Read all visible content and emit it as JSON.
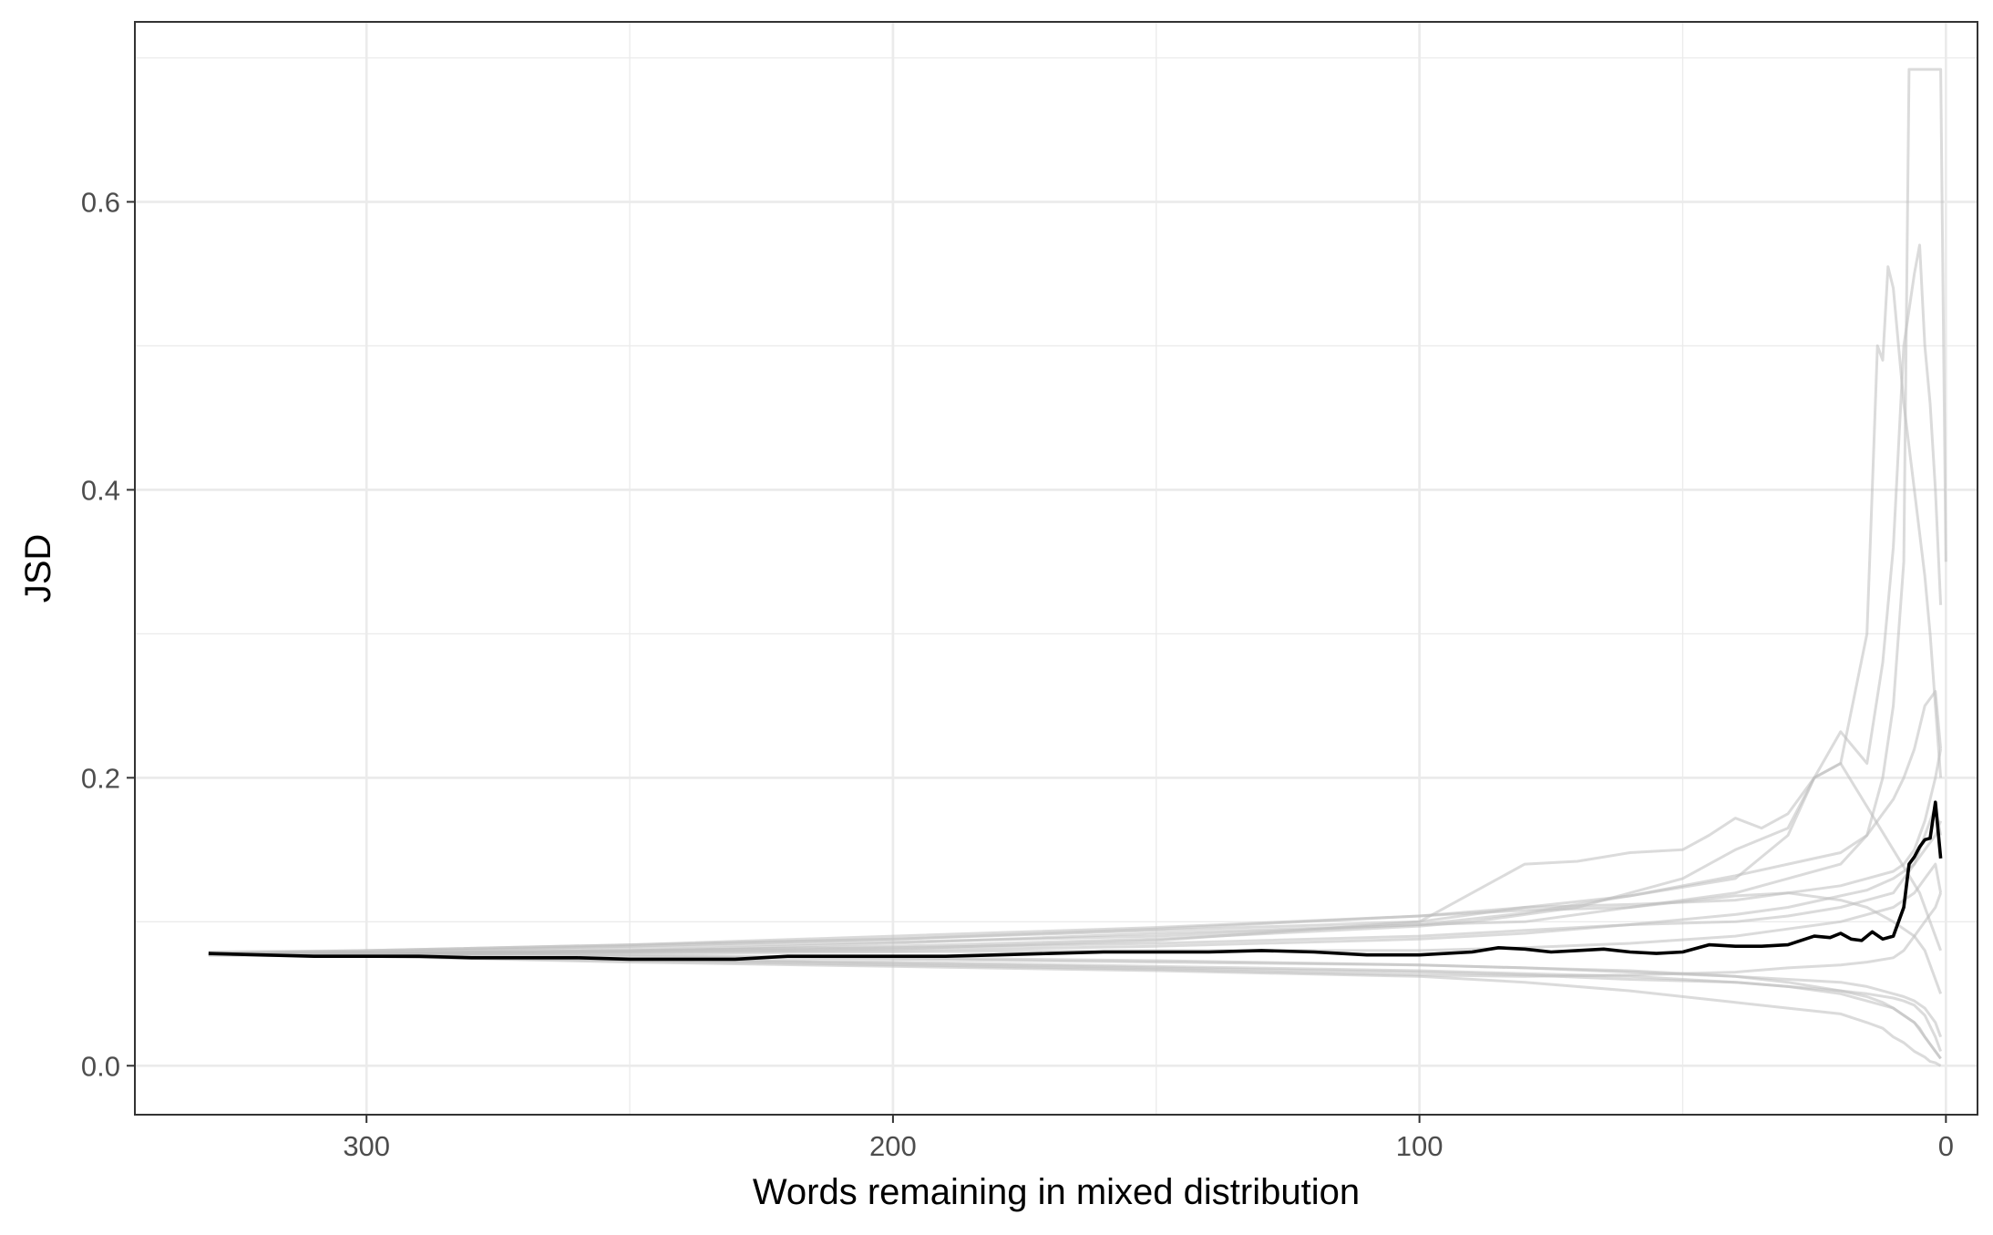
{
  "chart_data": {
    "type": "line",
    "title": "",
    "xlabel": "Words remaining in mixed distribution",
    "ylabel": "JSD",
    "x_reversed": true,
    "xlim": [
      344,
      -6
    ],
    "ylim": [
      -0.034,
      0.725
    ],
    "x_major_ticks": [
      300,
      200,
      100,
      0
    ],
    "x_tick_labels": [
      "300",
      "200",
      "100",
      "0"
    ],
    "x_minor_ticks": [
      250,
      150,
      50
    ],
    "y_major_ticks": [
      0.0,
      0.2,
      0.4,
      0.6
    ],
    "y_tick_labels": [
      "0.0",
      "0.2",
      "0.4",
      "0.6"
    ],
    "y_minor_ticks": [
      0.1,
      0.3,
      0.5,
      0.7
    ],
    "grid": true,
    "legend": "none",
    "colors": {
      "mean_line": "#000000",
      "individual_lines": "#bdbdbd",
      "grid": "#ebebeb",
      "panel_border": "#333333"
    },
    "mean_series": {
      "x": [
        330,
        320,
        310,
        300,
        290,
        280,
        270,
        260,
        250,
        240,
        230,
        220,
        210,
        200,
        190,
        180,
        170,
        160,
        150,
        140,
        130,
        120,
        110,
        100,
        90,
        85,
        80,
        75,
        70,
        65,
        60,
        55,
        50,
        45,
        40,
        35,
        30,
        25,
        22,
        20,
        18,
        16,
        14,
        12,
        10,
        8,
        7,
        6,
        5,
        4,
        3,
        2,
        1
      ],
      "y": [
        0.078,
        0.077,
        0.076,
        0.076,
        0.076,
        0.075,
        0.075,
        0.075,
        0.074,
        0.074,
        0.074,
        0.076,
        0.076,
        0.076,
        0.076,
        0.077,
        0.078,
        0.079,
        0.079,
        0.079,
        0.08,
        0.079,
        0.077,
        0.077,
        0.079,
        0.082,
        0.081,
        0.079,
        0.08,
        0.081,
        0.079,
        0.078,
        0.079,
        0.084,
        0.083,
        0.083,
        0.084,
        0.09,
        0.089,
        0.092,
        0.088,
        0.087,
        0.093,
        0.088,
        0.09,
        0.11,
        0.14,
        0.145,
        0.152,
        0.157,
        0.158,
        0.183,
        0.144
      ]
    },
    "individual_series": [
      {
        "x": [
          330,
          300,
          250,
          200,
          150,
          100,
          80,
          60,
          40,
          30,
          20,
          15,
          12,
          10,
          8,
          6,
          4,
          3,
          2,
          1
        ],
        "y": [
          0.077,
          0.076,
          0.072,
          0.069,
          0.066,
          0.062,
          0.058,
          0.052,
          0.044,
          0.04,
          0.036,
          0.03,
          0.026,
          0.02,
          0.016,
          0.01,
          0.006,
          0.003,
          0.002,
          0.0
        ]
      },
      {
        "x": [
          330,
          300,
          250,
          200,
          150,
          100,
          80,
          60,
          40,
          30,
          20,
          15,
          12,
          10,
          8,
          6,
          4,
          2,
          1
        ],
        "y": [
          0.078,
          0.079,
          0.082,
          0.086,
          0.09,
          0.098,
          0.106,
          0.118,
          0.132,
          0.14,
          0.148,
          0.16,
          0.175,
          0.185,
          0.2,
          0.22,
          0.25,
          0.26,
          0.22
        ]
      },
      {
        "x": [
          330,
          300,
          250,
          200,
          150,
          100,
          90,
          80,
          70,
          60,
          50,
          45,
          40,
          35,
          30,
          25,
          20,
          15,
          10,
          5,
          3,
          1
        ],
        "y": [
          0.078,
          0.08,
          0.084,
          0.088,
          0.094,
          0.1,
          0.12,
          0.14,
          0.142,
          0.148,
          0.15,
          0.16,
          0.172,
          0.165,
          0.175,
          0.2,
          0.21,
          0.18,
          0.15,
          0.12,
          0.1,
          0.08
        ]
      },
      {
        "x": [
          330,
          300,
          250,
          200,
          150,
          100,
          80,
          60,
          40,
          30,
          25,
          20,
          15,
          12,
          10,
          8,
          6,
          5,
          4,
          3,
          2,
          1
        ],
        "y": [
          0.077,
          0.077,
          0.079,
          0.081,
          0.087,
          0.1,
          0.11,
          0.118,
          0.13,
          0.16,
          0.2,
          0.232,
          0.21,
          0.28,
          0.36,
          0.5,
          0.55,
          0.57,
          0.5,
          0.46,
          0.4,
          0.32
        ]
      },
      {
        "x": [
          330,
          300,
          250,
          200,
          150,
          100,
          90,
          80,
          70,
          60,
          50,
          40,
          30,
          25,
          20,
          15,
          14,
          13,
          12,
          11,
          10,
          8,
          6,
          4,
          3,
          2,
          1
        ],
        "y": [
          0.078,
          0.078,
          0.08,
          0.083,
          0.088,
          0.097,
          0.1,
          0.105,
          0.11,
          0.12,
          0.13,
          0.15,
          0.165,
          0.2,
          0.21,
          0.3,
          0.4,
          0.5,
          0.49,
          0.555,
          0.54,
          0.46,
          0.4,
          0.34,
          0.3,
          0.25,
          0.2
        ]
      },
      {
        "x": [
          330,
          300,
          250,
          200,
          150,
          100,
          80,
          60,
          40,
          30,
          20,
          15,
          12,
          10,
          8,
          7,
          6,
          2,
          1,
          0
        ],
        "y": [
          0.077,
          0.078,
          0.08,
          0.085,
          0.092,
          0.098,
          0.1,
          0.11,
          0.12,
          0.13,
          0.14,
          0.16,
          0.2,
          0.25,
          0.35,
          0.692,
          0.692,
          0.692,
          0.692,
          0.35
        ]
      },
      {
        "x": [
          330,
          300,
          250,
          200,
          150,
          100,
          80,
          60,
          40,
          30,
          20,
          15,
          12,
          10,
          8,
          6,
          5,
          4,
          3,
          2,
          1
        ],
        "y": [
          0.078,
          0.078,
          0.077,
          0.075,
          0.073,
          0.07,
          0.068,
          0.066,
          0.062,
          0.058,
          0.052,
          0.048,
          0.044,
          0.04,
          0.035,
          0.03,
          0.026,
          0.02,
          0.015,
          0.01,
          0.005
        ]
      },
      {
        "x": [
          330,
          300,
          250,
          200,
          150,
          100,
          80,
          60,
          40,
          30,
          20,
          15,
          10,
          8,
          6,
          4,
          2,
          1
        ],
        "y": [
          0.079,
          0.08,
          0.084,
          0.09,
          0.096,
          0.104,
          0.11,
          0.112,
          0.115,
          0.12,
          0.125,
          0.13,
          0.135,
          0.14,
          0.15,
          0.17,
          0.2,
          0.22
        ]
      },
      {
        "x": [
          330,
          300,
          250,
          200,
          150,
          100,
          80,
          60,
          40,
          30,
          20,
          15,
          10,
          8,
          6,
          4,
          2,
          1
        ],
        "y": [
          0.078,
          0.077,
          0.074,
          0.072,
          0.069,
          0.066,
          0.064,
          0.062,
          0.058,
          0.055,
          0.052,
          0.05,
          0.047,
          0.045,
          0.042,
          0.035,
          0.02,
          0.01
        ]
      },
      {
        "x": [
          330,
          300,
          250,
          200,
          150,
          100,
          80,
          60,
          40,
          30,
          20,
          15,
          10,
          8,
          6,
          4,
          2,
          1
        ],
        "y": [
          0.078,
          0.079,
          0.083,
          0.088,
          0.095,
          0.104,
          0.108,
          0.11,
          0.118,
          0.12,
          0.115,
          0.11,
          0.1,
          0.095,
          0.09,
          0.08,
          0.06,
          0.05
        ]
      },
      {
        "x": [
          330,
          300,
          250,
          200,
          150,
          100,
          80,
          60,
          40,
          30,
          20,
          15,
          10,
          8,
          6,
          4,
          2,
          1
        ],
        "y": [
          0.077,
          0.076,
          0.073,
          0.07,
          0.067,
          0.063,
          0.062,
          0.063,
          0.065,
          0.068,
          0.07,
          0.072,
          0.075,
          0.08,
          0.09,
          0.1,
          0.11,
          0.12
        ]
      },
      {
        "x": [
          330,
          300,
          250,
          200,
          150,
          100,
          80,
          60,
          40,
          30,
          20,
          15,
          10,
          8,
          6,
          4,
          2,
          1
        ],
        "y": [
          0.078,
          0.078,
          0.079,
          0.08,
          0.083,
          0.088,
          0.092,
          0.098,
          0.105,
          0.11,
          0.118,
          0.122,
          0.13,
          0.135,
          0.14,
          0.15,
          0.16,
          0.17
        ]
      },
      {
        "x": [
          330,
          300,
          250,
          200,
          150,
          100,
          80,
          60,
          40,
          30,
          20,
          15,
          10,
          8,
          6,
          4,
          2,
          1
        ],
        "y": [
          0.078,
          0.077,
          0.076,
          0.074,
          0.072,
          0.07,
          0.068,
          0.065,
          0.062,
          0.06,
          0.058,
          0.055,
          0.05,
          0.048,
          0.045,
          0.04,
          0.03,
          0.02
        ]
      },
      {
        "x": [
          330,
          300,
          250,
          200,
          150,
          100,
          80,
          60,
          40,
          30,
          20,
          15,
          10,
          8,
          6,
          4,
          2,
          1
        ],
        "y": [
          0.078,
          0.078,
          0.08,
          0.082,
          0.085,
          0.09,
          0.094,
          0.098,
          0.1,
          0.104,
          0.11,
          0.115,
          0.12,
          0.13,
          0.14,
          0.16,
          0.18,
          0.16
        ]
      },
      {
        "x": [
          330,
          300,
          250,
          200,
          150,
          100,
          80,
          60,
          40,
          30,
          20,
          15,
          10,
          8,
          6,
          4,
          2,
          1
        ],
        "y": [
          0.077,
          0.076,
          0.074,
          0.071,
          0.068,
          0.065,
          0.063,
          0.06,
          0.058,
          0.055,
          0.05,
          0.045,
          0.04,
          0.035,
          0.03,
          0.02,
          0.01,
          0.005
        ]
      },
      {
        "x": [
          330,
          300,
          250,
          200,
          150,
          100,
          80,
          60,
          40,
          30,
          20,
          15,
          10,
          8,
          6,
          4,
          2,
          1
        ],
        "y": [
          0.078,
          0.078,
          0.078,
          0.079,
          0.08,
          0.08,
          0.082,
          0.085,
          0.09,
          0.095,
          0.1,
          0.105,
          0.11,
          0.115,
          0.12,
          0.13,
          0.14,
          0.12
        ]
      }
    ]
  }
}
